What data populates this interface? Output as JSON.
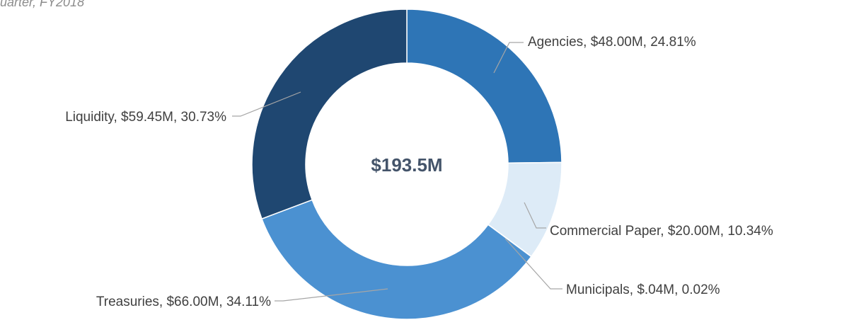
{
  "chart_data": {
    "type": "donut",
    "title": "uarter, FY2018",
    "center_label": "$193.5M",
    "values": [
      24.81,
      10.34,
      0.02,
      34.11,
      30.73
    ],
    "value_labels": [
      "Agencies, $48.00M, 24.81%",
      "Commercial Paper, $20.00M, 10.34%",
      "Municipals, $.04M, 0.02%",
      "Treasuries, $66.00M, 34.11%",
      "Liquidity, $59.45M, 30.73%"
    ],
    "colors": [
      "#2e75b6",
      "#ddebf7",
      "#9dc3e6",
      "#4b91d1",
      "#1f4771"
    ]
  }
}
